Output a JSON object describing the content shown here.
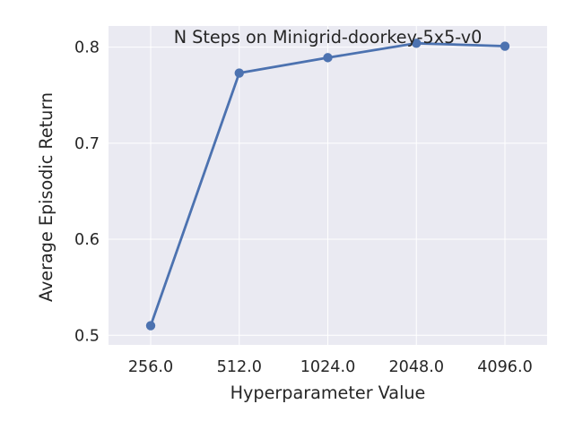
{
  "chart_data": {
    "type": "line",
    "title": "N Steps on Minigrid-doorkey-5x5-v0",
    "xlabel": "Hyperparameter Value",
    "ylabel": "Average Episodic Return",
    "categories": [
      "256.0",
      "512.0",
      "1024.0",
      "2048.0",
      "4096.0"
    ],
    "series": [
      {
        "values": [
          0.51,
          0.773,
          0.789,
          0.804,
          0.801
        ]
      }
    ],
    "ylim": [
      0.49,
      0.822
    ],
    "yticks": [
      0.5,
      0.6,
      0.7,
      0.8
    ],
    "ytick_labels": [
      "0.5",
      "0.6",
      "0.7",
      "0.8"
    ],
    "grid": true,
    "colors": {
      "background": "#eaeaf2",
      "grid": "#ffffff",
      "line": "#4c72b0"
    }
  }
}
